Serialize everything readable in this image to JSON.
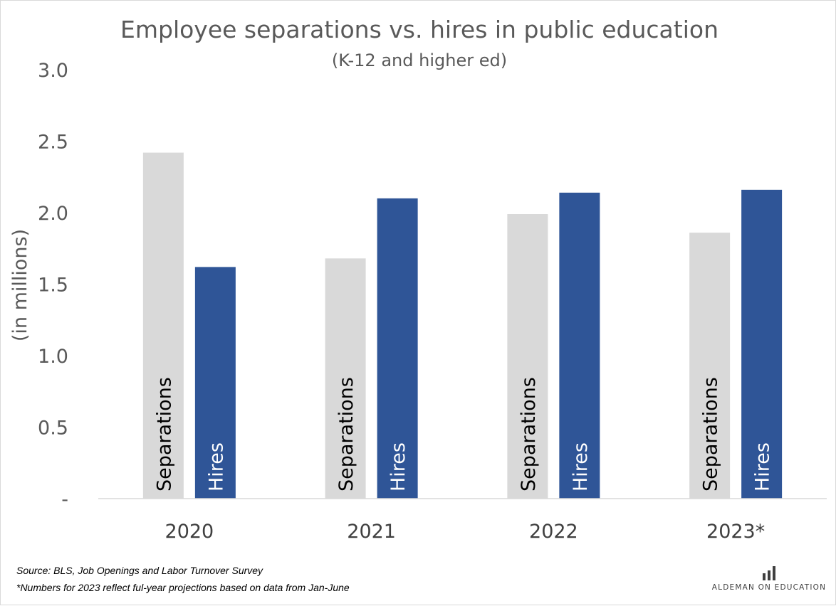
{
  "chart_data": {
    "type": "bar",
    "title": "Employee separations vs. hires in public education",
    "subtitle": "(K-12 and higher ed)",
    "ylabel": "(in millions)",
    "xlabel": "",
    "ylim": [
      0,
      3.0
    ],
    "ytick_values": [
      0,
      0.5,
      1.0,
      1.5,
      2.0,
      2.5,
      3.0
    ],
    "ytick_labels": [
      "-",
      "0.5",
      "1.0",
      "1.5",
      "2.0",
      "2.5",
      "3.0"
    ],
    "grid": false,
    "categories": [
      "2020",
      "2021",
      "2022",
      "2023*"
    ],
    "series": [
      {
        "name": "Separations",
        "color": "#d9d9d9",
        "label_color": "#000000",
        "values": [
          2.42,
          1.68,
          1.99,
          1.86
        ]
      },
      {
        "name": "Hires",
        "color": "#2f5597",
        "label_color": "#ffffff",
        "values": [
          1.62,
          2.1,
          2.14,
          2.16
        ]
      }
    ]
  },
  "footnotes": {
    "source": "Source: BLS, Job Openings and Labor Turnover Survey",
    "note": "*Numbers for 2023 reflect ful-year projections based on data from Jan-June"
  },
  "brand": {
    "name": "ALDEMAN ON EDUCATION",
    "logo_icon": "bar-chart-icon",
    "logo_color": "#404040"
  }
}
